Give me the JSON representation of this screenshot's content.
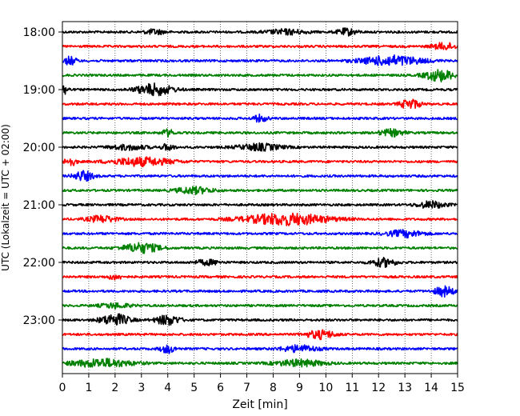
{
  "chart_data": {
    "type": "line",
    "title": "",
    "xlabel": "Zeit  [min]",
    "ylabel": "UTC (Lokalzeit = UTC + 02:00)",
    "xlim": [
      0,
      15
    ],
    "x_ticks": [
      "0",
      "1",
      "2",
      "3",
      "4",
      "5",
      "6",
      "7",
      "8",
      "9",
      "10",
      "11",
      "12",
      "13",
      "14",
      "15"
    ],
    "y_tick_labels": [
      "18:00",
      "19:00",
      "20:00",
      "21:00",
      "22:00",
      "23:00"
    ],
    "grid": {
      "vertical": true,
      "style": "dotted"
    },
    "trace_colors": [
      "#000000",
      "#ff0000",
      "#0000ff",
      "#008000"
    ],
    "series": [
      {
        "start": "18:00",
        "color": "black",
        "bursts": [
          [
            3.5,
            0.8,
            3
          ],
          [
            8.5,
            1.6,
            3
          ],
          [
            10.8,
            0.8,
            4
          ]
        ]
      },
      {
        "start": "18:15",
        "color": "red",
        "bursts": [
          [
            14.5,
            1.0,
            4
          ]
        ]
      },
      {
        "start": "18:30",
        "color": "blue",
        "bursts": [
          [
            0.3,
            0.5,
            5
          ],
          [
            12.5,
            2.5,
            6
          ]
        ]
      },
      {
        "start": "18:45",
        "color": "green",
        "bursts": [
          [
            14.3,
            1.2,
            7
          ]
        ]
      },
      {
        "start": "19:00",
        "color": "black",
        "bursts": [
          [
            0.1,
            0.3,
            6
          ],
          [
            3.5,
            1.5,
            7
          ]
        ]
      },
      {
        "start": "19:15",
        "color": "red",
        "bursts": [
          [
            13.2,
            0.8,
            6
          ]
        ]
      },
      {
        "start": "19:30",
        "color": "blue",
        "bursts": [
          [
            7.5,
            0.6,
            4
          ]
        ]
      },
      {
        "start": "19:45",
        "color": "green",
        "bursts": [
          [
            4.0,
            0.5,
            4
          ],
          [
            12.5,
            1.0,
            4
          ]
        ]
      },
      {
        "start": "20:00",
        "color": "black",
        "bursts": [
          [
            2.5,
            1.5,
            3
          ],
          [
            4.0,
            0.5,
            4
          ],
          [
            7.5,
            1.8,
            4
          ]
        ]
      },
      {
        "start": "20:15",
        "color": "red",
        "bursts": [
          [
            0.3,
            0.5,
            5
          ],
          [
            3.0,
            2.5,
            5
          ]
        ]
      },
      {
        "start": "20:30",
        "color": "blue",
        "bursts": [
          [
            0.8,
            0.8,
            6
          ]
        ]
      },
      {
        "start": "20:45",
        "color": "green",
        "bursts": [
          [
            5.0,
            1.5,
            4
          ]
        ]
      },
      {
        "start": "21:00",
        "color": "black",
        "bursts": [
          [
            14.0,
            1.2,
            4
          ]
        ]
      },
      {
        "start": "21:15",
        "color": "red",
        "bursts": [
          [
            1.5,
            1.2,
            4
          ],
          [
            8.5,
            3.5,
            7
          ]
        ]
      },
      {
        "start": "21:30",
        "color": "blue",
        "bursts": [
          [
            13.0,
            1.5,
            4
          ]
        ]
      },
      {
        "start": "21:45",
        "color": "green",
        "bursts": [
          [
            3.0,
            1.5,
            6
          ]
        ]
      },
      {
        "start": "22:00",
        "color": "black",
        "bursts": [
          [
            5.5,
            1.0,
            3
          ],
          [
            12.2,
            1.0,
            5
          ]
        ]
      },
      {
        "start": "22:15",
        "color": "red",
        "bursts": [
          [
            2.0,
            0.6,
            3
          ]
        ]
      },
      {
        "start": "22:30",
        "color": "blue",
        "bursts": [
          [
            14.5,
            0.8,
            6
          ]
        ]
      },
      {
        "start": "22:45",
        "color": "green",
        "bursts": [
          [
            2.0,
            1.2,
            3
          ]
        ]
      },
      {
        "start": "23:00",
        "color": "black",
        "bursts": [
          [
            2.0,
            1.2,
            7
          ],
          [
            4.0,
            1.0,
            6
          ]
        ]
      },
      {
        "start": "23:15",
        "color": "red",
        "bursts": [
          [
            9.8,
            1.2,
            5
          ]
        ]
      },
      {
        "start": "23:30",
        "color": "blue",
        "bursts": [
          [
            4.0,
            0.6,
            5
          ],
          [
            9.0,
            1.5,
            4
          ]
        ]
      },
      {
        "start": "23:45",
        "color": "green",
        "bursts": [
          [
            1.5,
            2.5,
            5
          ],
          [
            9.0,
            2.0,
            4
          ]
        ]
      }
    ]
  }
}
